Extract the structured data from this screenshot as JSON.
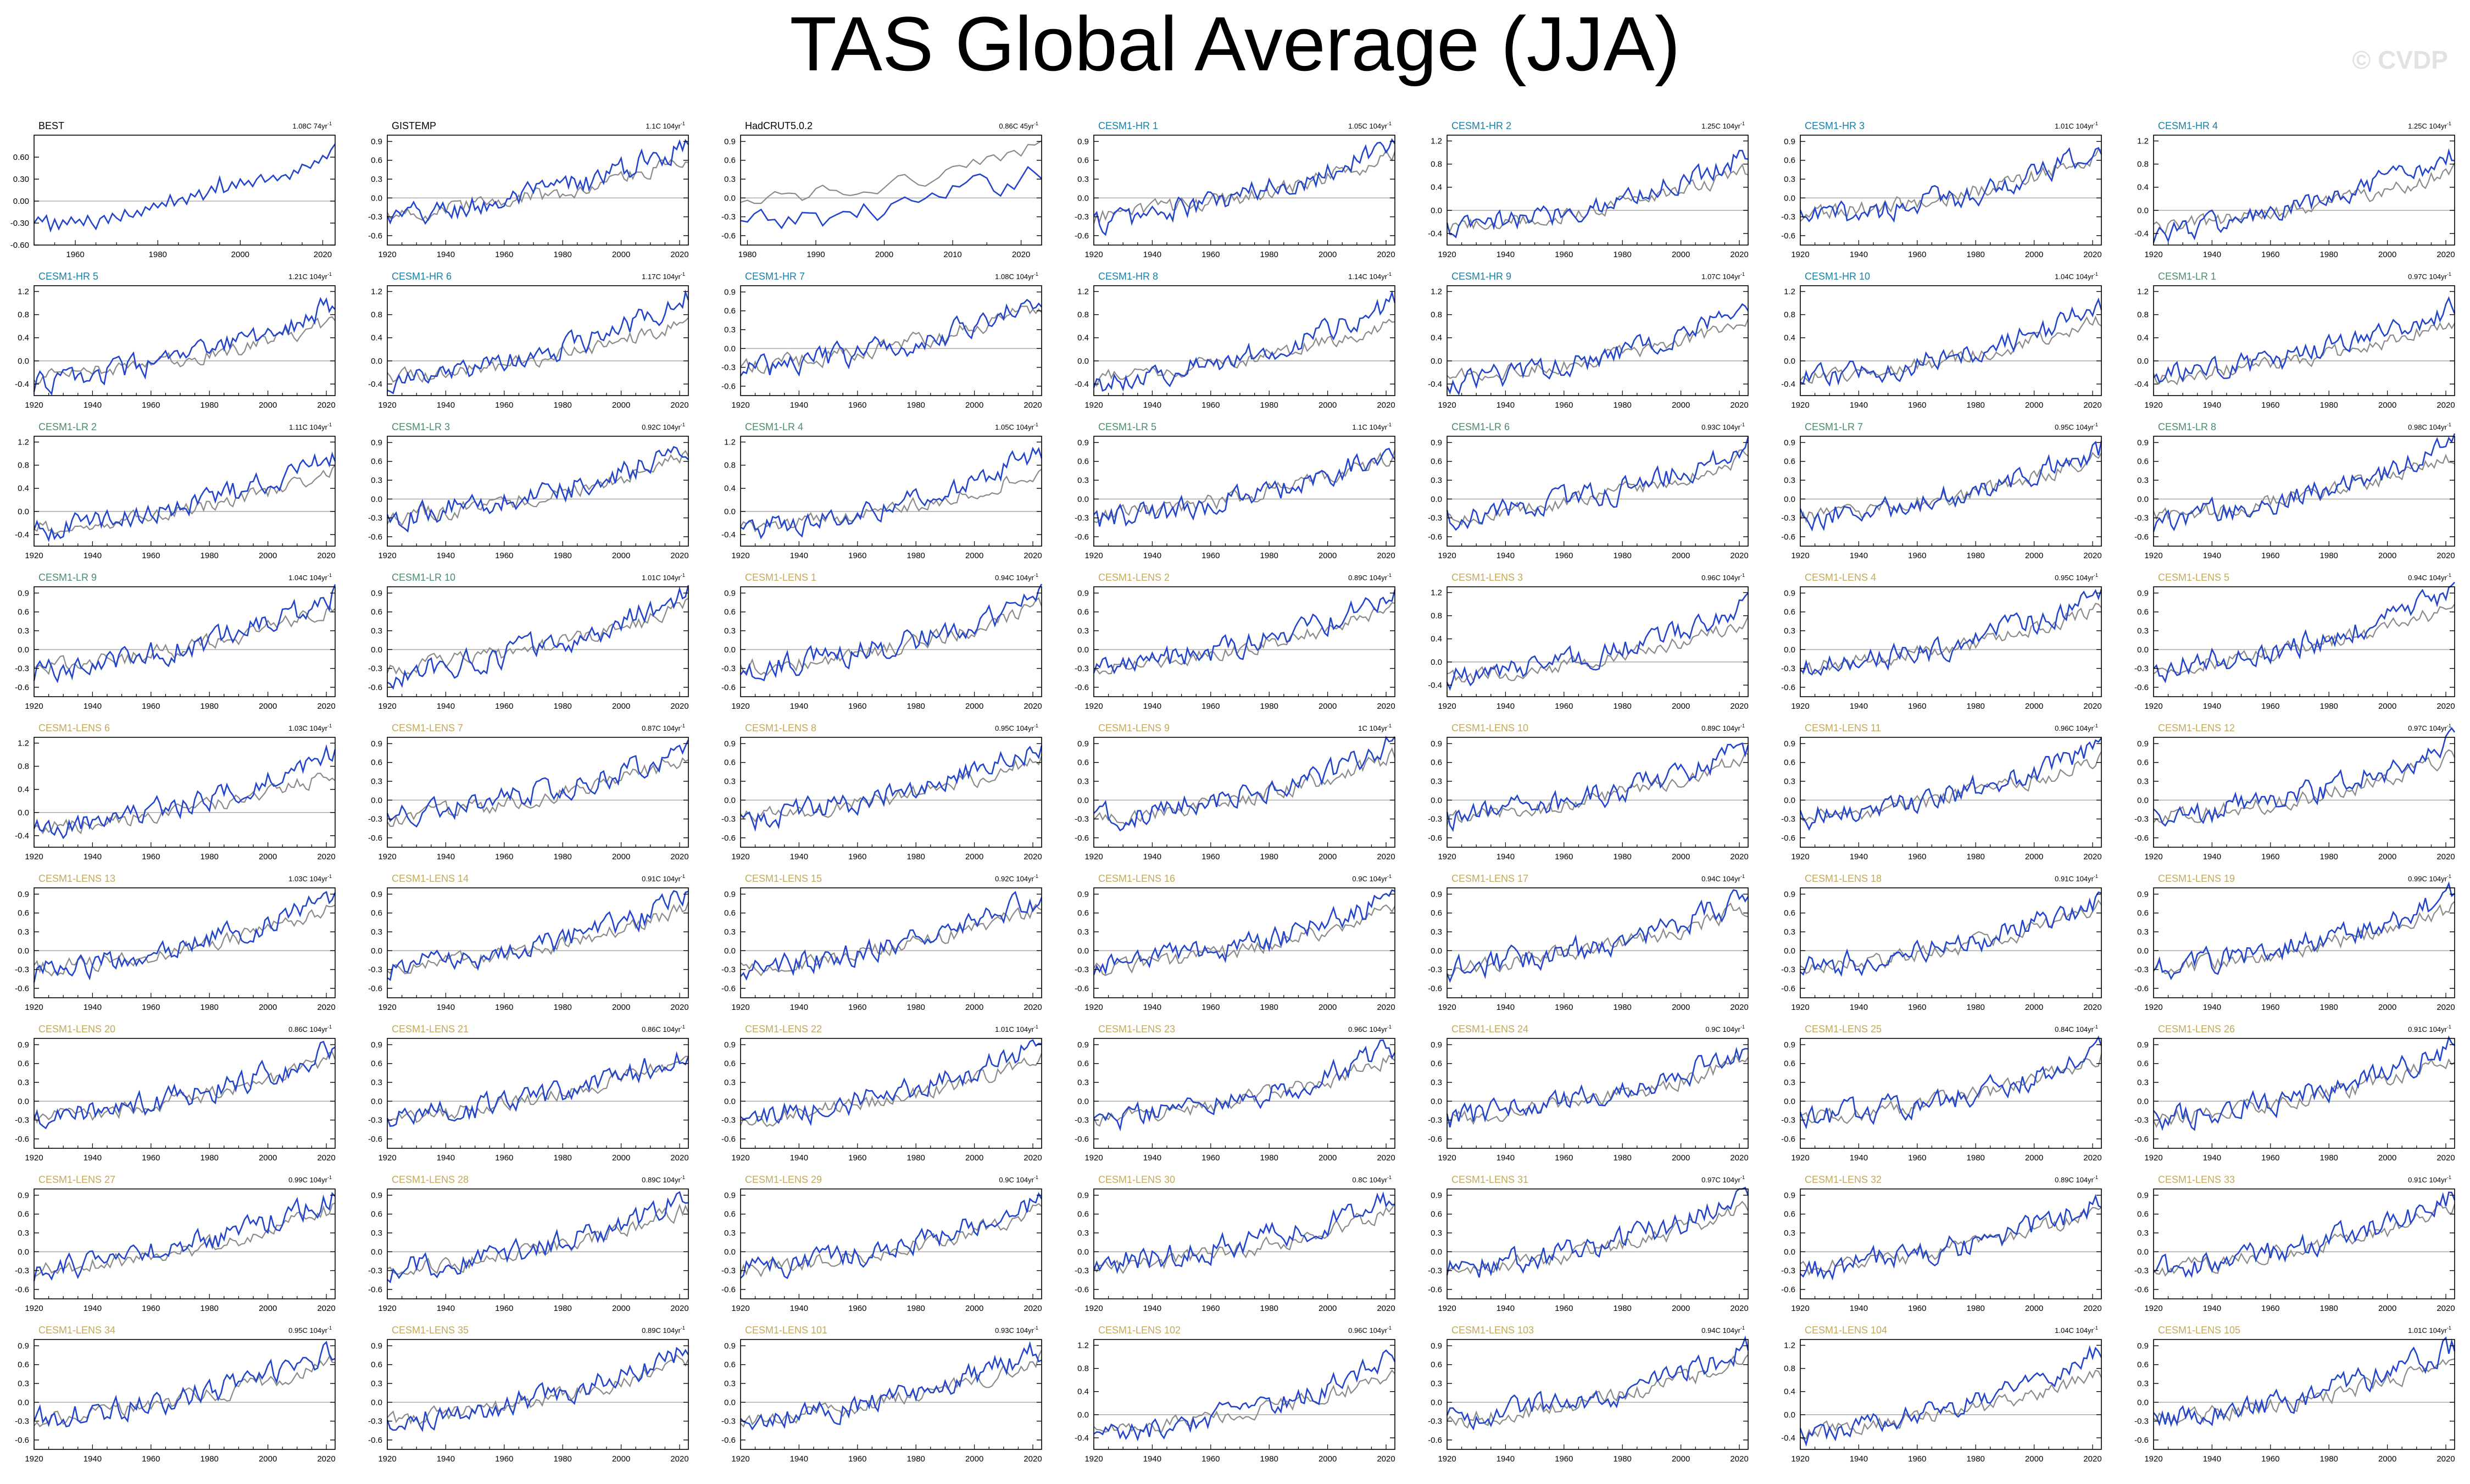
{
  "figure": {
    "title": "TAS Global Average (JJA)",
    "watermark": "© CVDP"
  },
  "colors": {
    "obs_label": "#000000",
    "hr_label": "#1a7fa6",
    "lr_label": "#4e8a6c",
    "lens_label": "#c4a95b",
    "member_line": "#2244cc",
    "reference_line": "#8a8a8a",
    "zero_line": "#b0b0b0",
    "axis": "#000000"
  },
  "chart_data": [
    {
      "type": "line",
      "name": "BEST",
      "group": "obs",
      "trend": "1.08C 74yr",
      "x_range": [
        1950,
        2023
      ],
      "ylim": [
        -0.6,
        0.9
      ],
      "yticks": [
        "0.60",
        "0.30",
        "0.00",
        "-0.30",
        "-0.60"
      ],
      "ytick_values": [
        0.6,
        0.3,
        0,
        -0.3,
        -0.6
      ],
      "xticks": [
        1960,
        1980,
        2000,
        2020
      ],
      "member": {
        "start": -0.28,
        "end": 0.78
      },
      "show_reference": false,
      "series": [
        {
          "name": "BEST",
          "values": [
            -0.3,
            -0.22,
            -0.28,
            -0.2,
            -0.4,
            -0.25,
            -0.38,
            -0.26,
            -0.32,
            -0.22,
            -0.3,
            -0.25,
            -0.33,
            -0.2,
            -0.3,
            -0.38,
            -0.24,
            -0.2,
            -0.3,
            -0.17,
            -0.23,
            -0.27,
            -0.12,
            -0.2,
            -0.22,
            -0.13,
            -0.2,
            -0.08,
            -0.12,
            -0.03,
            -0.09,
            -0.02,
            -0.07,
            0.08,
            -0.06,
            0.02,
            0.05,
            -0.04,
            0.1,
            0.06,
            0.15,
            0.02,
            0.1,
            0.2,
            0.12,
            0.32,
            0.12,
            0.15,
            0.26,
            0.18,
            0.3,
            0.22,
            0.28,
            0.2,
            0.3,
            0.36,
            0.26,
            0.3,
            0.35,
            0.28,
            0.34,
            0.36,
            0.3,
            0.42,
            0.38,
            0.5,
            0.48,
            0.45,
            0.55,
            0.52,
            0.62,
            0.58,
            0.7,
            0.78
          ]
        }
      ]
    },
    {
      "type": "line",
      "name": "GISTEMP",
      "group": "obs",
      "trend": "1.1C 104yr",
      "x_range": [
        1920,
        2023
      ],
      "ylim": [
        -0.75,
        1.0
      ],
      "yticks": [
        "0.9",
        "0.6",
        "0.3",
        "0.0",
        "-0.3",
        "-0.6"
      ],
      "ytick_values": [
        0.9,
        0.6,
        0.3,
        0,
        -0.3,
        -0.6
      ],
      "xticks": [
        1920,
        1940,
        1960,
        1980,
        2000,
        2020
      ],
      "member": {
        "start": -0.35,
        "end": 0.88
      },
      "show_reference": true
    },
    {
      "type": "line",
      "name": "HadCRUT5.0.2",
      "group": "obs",
      "trend": "0.86C 45yr",
      "x_range": [
        1979,
        2023
      ],
      "ylim": [
        -0.75,
        1.0
      ],
      "yticks": [
        "0.9",
        "0.6",
        "0.3",
        "0.0",
        "-0.3",
        "-0.6"
      ],
      "ytick_values": [
        0.9,
        0.6,
        0.3,
        0,
        -0.3,
        -0.6
      ],
      "xticks": [
        1980,
        1990,
        2000,
        2010,
        2020
      ],
      "member": {
        "start": -0.45,
        "end": 0.45
      },
      "show_reference": true,
      "reference": {
        "start": -0.05,
        "end": 0.85
      }
    },
    {
      "type": "line",
      "name": "CESM1-HR 1",
      "group": "hr",
      "trend": "1.05C 104yr",
      "member": {
        "start": -0.4,
        "end": 0.92
      }
    },
    {
      "type": "line",
      "name": "CESM1-HR 2",
      "group": "hr",
      "trend": "1.25C 104yr",
      "ylim": [
        -0.6,
        1.3
      ],
      "yticks": [
        "1.2",
        "0.8",
        "0.4",
        "0.0",
        "-0.4"
      ],
      "ytick_values": [
        1.2,
        0.8,
        0.4,
        0,
        -0.4
      ],
      "member": {
        "start": -0.35,
        "end": 1.0
      }
    },
    {
      "type": "line",
      "name": "CESM1-HR 3",
      "group": "hr",
      "trend": "1.01C 104yr",
      "member": {
        "start": -0.35,
        "end": 0.75
      }
    },
    {
      "type": "line",
      "name": "CESM1-HR 4",
      "group": "hr",
      "trend": "1.25C 104yr",
      "ylim": [
        -0.6,
        1.3
      ],
      "yticks": [
        "1.2",
        "0.8",
        "0.4",
        "0.0",
        "-0.4"
      ],
      "ytick_values": [
        1.2,
        0.8,
        0.4,
        0,
        -0.4
      ],
      "member": {
        "start": -0.4,
        "end": 1.0
      }
    },
    {
      "type": "line",
      "name": "CESM1-HR 5",
      "group": "hr",
      "trend": "1.21C 104yr",
      "ylim": [
        -0.6,
        1.3
      ],
      "yticks": [
        "1.2",
        "0.8",
        "0.4",
        "0.0",
        "-0.4"
      ],
      "ytick_values": [
        1.2,
        0.8,
        0.4,
        0,
        -0.4
      ],
      "member": {
        "start": -0.4,
        "end": 1.0
      }
    },
    {
      "type": "line",
      "name": "CESM1-HR 6",
      "group": "hr",
      "trend": "1.17C 104yr",
      "ylim": [
        -0.6,
        1.3
      ],
      "yticks": [
        "1.2",
        "0.8",
        "0.4",
        "0.0",
        "-0.4"
      ],
      "ytick_values": [
        1.2,
        0.8,
        0.4,
        0,
        -0.4
      ],
      "member": {
        "start": -0.4,
        "end": 1.1
      }
    },
    {
      "type": "line",
      "name": "CESM1-HR 7",
      "group": "hr",
      "trend": "1.08C 104yr",
      "member": {
        "start": -0.35,
        "end": 0.8
      }
    },
    {
      "type": "line",
      "name": "CESM1-HR 8",
      "group": "hr",
      "trend": "1.14C 104yr",
      "ylim": [
        -0.6,
        1.3
      ],
      "yticks": [
        "1.2",
        "0.8",
        "0.4",
        "0.0",
        "-0.4"
      ],
      "ytick_values": [
        1.2,
        0.8,
        0.4,
        0,
        -0.4
      ],
      "member": {
        "start": -0.4,
        "end": 1.05
      }
    },
    {
      "type": "line",
      "name": "CESM1-HR 9",
      "group": "hr",
      "trend": "1.07C 104yr",
      "ylim": [
        -0.6,
        1.3
      ],
      "yticks": [
        "1.2",
        "0.8",
        "0.4",
        "0.0",
        "-0.4"
      ],
      "ytick_values": [
        1.2,
        0.8,
        0.4,
        0,
        -0.4
      ],
      "member": {
        "start": -0.4,
        "end": 1.0
      }
    },
    {
      "type": "line",
      "name": "CESM1-HR 10",
      "group": "hr",
      "trend": "1.04C 104yr",
      "ylim": [
        -0.6,
        1.3
      ],
      "yticks": [
        "1.2",
        "0.8",
        "0.4",
        "0.0",
        "-0.4"
      ],
      "ytick_values": [
        1.2,
        0.8,
        0.4,
        0,
        -0.4
      ],
      "member": {
        "start": -0.35,
        "end": 0.95
      }
    },
    {
      "type": "line",
      "name": "CESM1-LR 1",
      "group": "lr",
      "trend": "0.97C 104yr",
      "ylim": [
        -0.6,
        1.3
      ],
      "yticks": [
        "1.2",
        "0.8",
        "0.4",
        "0.0",
        "-0.4"
      ],
      "ytick_values": [
        1.2,
        0.8,
        0.4,
        0,
        -0.4
      ],
      "member": {
        "start": -0.3,
        "end": 0.95
      }
    },
    {
      "type": "line",
      "name": "CESM1-LR 2",
      "group": "lr",
      "trend": "1.11C 104yr",
      "ylim": [
        -0.6,
        1.3
      ],
      "yticks": [
        "1.2",
        "0.8",
        "0.4",
        "0.0",
        "-0.4"
      ],
      "ytick_values": [
        1.2,
        0.8,
        0.4,
        0,
        -0.4
      ],
      "member": {
        "start": -0.35,
        "end": 1.0
      }
    },
    {
      "type": "line",
      "name": "CESM1-LR 3",
      "group": "lr",
      "trend": "0.92C 104yr",
      "member": {
        "start": -0.3,
        "end": 0.85
      }
    },
    {
      "type": "line",
      "name": "CESM1-LR 4",
      "group": "lr",
      "trend": "1.05C 104yr",
      "ylim": [
        -0.6,
        1.3
      ],
      "yticks": [
        "1.2",
        "0.8",
        "0.4",
        "0.0",
        "-0.4"
      ],
      "ytick_values": [
        1.2,
        0.8,
        0.4,
        0,
        -0.4
      ],
      "member": {
        "start": -0.35,
        "end": 1.05
      }
    },
    {
      "type": "line",
      "name": "CESM1-LR 5",
      "group": "lr",
      "trend": "1.1C 104yr",
      "member": {
        "start": -0.35,
        "end": 0.85
      }
    },
    {
      "type": "line",
      "name": "CESM1-LR 6",
      "group": "lr",
      "trend": "0.93C 104yr",
      "member": {
        "start": -0.3,
        "end": 0.8
      }
    },
    {
      "type": "line",
      "name": "CESM1-LR 7",
      "group": "lr",
      "trend": "0.95C 104yr",
      "member": {
        "start": -0.3,
        "end": 0.8
      }
    },
    {
      "type": "line",
      "name": "CESM1-LR 8",
      "group": "lr",
      "trend": "0.98C 104yr",
      "member": {
        "start": -0.35,
        "end": 0.85
      }
    },
    {
      "type": "line",
      "name": "CESM1-LR 9",
      "group": "lr",
      "trend": "1.04C 104yr",
      "member": {
        "start": -0.35,
        "end": 0.85
      }
    },
    {
      "type": "line",
      "name": "CESM1-LR 10",
      "group": "lr",
      "trend": "1.01C 104yr",
      "member": {
        "start": -0.4,
        "end": 0.9
      }
    },
    {
      "type": "line",
      "name": "CESM1-LENS 1",
      "group": "lens",
      "trend": "0.94C 104yr",
      "member": {
        "start": -0.3,
        "end": 0.85
      }
    },
    {
      "type": "line",
      "name": "CESM1-LENS 2",
      "group": "lens",
      "trend": "0.89C 104yr",
      "member": {
        "start": -0.3,
        "end": 0.85
      }
    },
    {
      "type": "line",
      "name": "CESM1-LENS 3",
      "group": "lens",
      "trend": "0.96C 104yr",
      "ylim": [
        -0.6,
        1.3
      ],
      "yticks": [
        "1.2",
        "0.8",
        "0.4",
        "0.0",
        "-0.4"
      ],
      "ytick_values": [
        1.2,
        0.8,
        0.4,
        0,
        -0.4
      ],
      "member": {
        "start": -0.3,
        "end": 1.0
      }
    },
    {
      "type": "line",
      "name": "CESM1-LENS 4",
      "group": "lens",
      "trend": "0.95C 104yr",
      "member": {
        "start": -0.3,
        "end": 0.85
      }
    },
    {
      "type": "line",
      "name": "CESM1-LENS 5",
      "group": "lens",
      "trend": "0.94C 104yr",
      "member": {
        "start": -0.3,
        "end": 0.9
      }
    },
    {
      "type": "line",
      "name": "CESM1-LENS 6",
      "group": "lens",
      "trend": "1.03C 104yr",
      "ylim": [
        -0.6,
        1.3
      ],
      "yticks": [
        "1.2",
        "0.8",
        "0.4",
        "0.0",
        "-0.4"
      ],
      "ytick_values": [
        1.2,
        0.8,
        0.4,
        0,
        -0.4
      ],
      "member": {
        "start": -0.3,
        "end": 1.05
      }
    },
    {
      "type": "line",
      "name": "CESM1-LENS 7",
      "group": "lens",
      "trend": "0.87C 104yr",
      "member": {
        "start": -0.25,
        "end": 0.85
      }
    },
    {
      "type": "line",
      "name": "CESM1-LENS 8",
      "group": "lens",
      "trend": "0.95C 104yr",
      "member": {
        "start": -0.3,
        "end": 0.85
      }
    },
    {
      "type": "line",
      "name": "CESM1-LENS 9",
      "group": "lens",
      "trend": "1C 104yr",
      "member": {
        "start": -0.3,
        "end": 0.9
      }
    },
    {
      "type": "line",
      "name": "CESM1-LENS 10",
      "group": "lens",
      "trend": "0.89C 104yr",
      "member": {
        "start": -0.3,
        "end": 0.85
      }
    },
    {
      "type": "line",
      "name": "CESM1-LENS 11",
      "group": "lens",
      "trend": "0.96C 104yr",
      "member": {
        "start": -0.3,
        "end": 0.9
      }
    },
    {
      "type": "line",
      "name": "CESM1-LENS 12",
      "group": "lens",
      "trend": "0.97C 104yr",
      "member": {
        "start": -0.3,
        "end": 0.9
      }
    },
    {
      "type": "line",
      "name": "CESM1-LENS 13",
      "group": "lens",
      "trend": "1.03C 104yr",
      "member": {
        "start": -0.35,
        "end": 0.9
      }
    },
    {
      "type": "line",
      "name": "CESM1-LENS 14",
      "group": "lens",
      "trend": "0.91C 104yr",
      "member": {
        "start": -0.3,
        "end": 0.85
      }
    },
    {
      "type": "line",
      "name": "CESM1-LENS 15",
      "group": "lens",
      "trend": "0.92C 104yr",
      "member": {
        "start": -0.3,
        "end": 0.85
      }
    },
    {
      "type": "line",
      "name": "CESM1-LENS 16",
      "group": "lens",
      "trend": "0.9C 104yr",
      "member": {
        "start": -0.3,
        "end": 0.85
      }
    },
    {
      "type": "line",
      "name": "CESM1-LENS 17",
      "group": "lens",
      "trend": "0.94C 104yr",
      "member": {
        "start": -0.3,
        "end": 0.85
      }
    },
    {
      "type": "line",
      "name": "CESM1-LENS 18",
      "group": "lens",
      "trend": "0.91C 104yr",
      "member": {
        "start": -0.3,
        "end": 0.85
      }
    },
    {
      "type": "line",
      "name": "CESM1-LENS 19",
      "group": "lens",
      "trend": "0.99C 104yr",
      "member": {
        "start": -0.3,
        "end": 0.9
      }
    },
    {
      "type": "line",
      "name": "CESM1-LENS 20",
      "group": "lens",
      "trend": "0.86C 104yr",
      "member": {
        "start": -0.3,
        "end": 0.85
      }
    },
    {
      "type": "line",
      "name": "CESM1-LENS 21",
      "group": "lens",
      "trend": "0.86C 104yr",
      "member": {
        "start": -0.3,
        "end": 0.8
      }
    },
    {
      "type": "line",
      "name": "CESM1-LENS 22",
      "group": "lens",
      "trend": "1.01C 104yr",
      "member": {
        "start": -0.3,
        "end": 0.9
      }
    },
    {
      "type": "line",
      "name": "CESM1-LENS 23",
      "group": "lens",
      "trend": "0.96C 104yr",
      "member": {
        "start": -0.35,
        "end": 0.85
      }
    },
    {
      "type": "line",
      "name": "CESM1-LENS 24",
      "group": "lens",
      "trend": "0.9C 104yr",
      "member": {
        "start": -0.3,
        "end": 0.85
      }
    },
    {
      "type": "line",
      "name": "CESM1-LENS 25",
      "group": "lens",
      "trend": "0.84C 104yr",
      "member": {
        "start": -0.3,
        "end": 0.8
      }
    },
    {
      "type": "line",
      "name": "CESM1-LENS 26",
      "group": "lens",
      "trend": "0.91C 104yr",
      "member": {
        "start": -0.3,
        "end": 0.9
      }
    },
    {
      "type": "line",
      "name": "CESM1-LENS 27",
      "group": "lens",
      "trend": "0.99C 104yr",
      "member": {
        "start": -0.3,
        "end": 0.9
      }
    },
    {
      "type": "line",
      "name": "CESM1-LENS 28",
      "group": "lens",
      "trend": "0.89C 104yr",
      "member": {
        "start": -0.3,
        "end": 0.85
      }
    },
    {
      "type": "line",
      "name": "CESM1-LENS 29",
      "group": "lens",
      "trend": "0.9C 104yr",
      "member": {
        "start": -0.3,
        "end": 0.85
      }
    },
    {
      "type": "line",
      "name": "CESM1-LENS 30",
      "group": "lens",
      "trend": "0.8C 104yr",
      "member": {
        "start": -0.2,
        "end": 0.85
      }
    },
    {
      "type": "line",
      "name": "CESM1-LENS 31",
      "group": "lens",
      "trend": "0.97C 104yr",
      "member": {
        "start": -0.3,
        "end": 0.9
      }
    },
    {
      "type": "line",
      "name": "CESM1-LENS 32",
      "group": "lens",
      "trend": "0.89C 104yr",
      "member": {
        "start": -0.3,
        "end": 0.8
      }
    },
    {
      "type": "line",
      "name": "CESM1-LENS 33",
      "group": "lens",
      "trend": "0.91C 104yr",
      "member": {
        "start": -0.3,
        "end": 0.85
      }
    },
    {
      "type": "line",
      "name": "CESM1-LENS 34",
      "group": "lens",
      "trend": "0.95C 104yr",
      "member": {
        "start": -0.3,
        "end": 0.85
      }
    },
    {
      "type": "line",
      "name": "CESM1-LENS 35",
      "group": "lens",
      "trend": "0.89C 104yr",
      "member": {
        "start": -0.3,
        "end": 0.85
      }
    },
    {
      "type": "line",
      "name": "CESM1-LENS 101",
      "group": "lens",
      "trend": "0.93C 104yr",
      "member": {
        "start": -0.3,
        "end": 0.85
      }
    },
    {
      "type": "line",
      "name": "CESM1-LENS 102",
      "group": "lens",
      "trend": "0.96C 104yr",
      "ylim": [
        -0.6,
        1.3
      ],
      "yticks": [
        "1.2",
        "0.8",
        "0.4",
        "0.0",
        "-0.4"
      ],
      "ytick_values": [
        1.2,
        0.8,
        0.4,
        0,
        -0.4
      ],
      "member": {
        "start": -0.4,
        "end": 1.0
      }
    },
    {
      "type": "line",
      "name": "CESM1-LENS 103",
      "group": "lens",
      "trend": "0.94C 104yr",
      "member": {
        "start": -0.3,
        "end": 0.85
      }
    },
    {
      "type": "line",
      "name": "CESM1-LENS 104",
      "group": "lens",
      "trend": "1.04C 104yr",
      "ylim": [
        -0.6,
        1.3
      ],
      "yticks": [
        "1.2",
        "0.8",
        "0.4",
        "0.0",
        "-0.4"
      ],
      "ytick_values": [
        1.2,
        0.8,
        0.4,
        0,
        -0.4
      ],
      "member": {
        "start": -0.35,
        "end": 1.1
      }
    },
    {
      "type": "line",
      "name": "CESM1-LENS 105",
      "group": "lens",
      "trend": "1.01C 104yr",
      "member": {
        "start": -0.3,
        "end": 0.9
      }
    }
  ],
  "defaults": {
    "x_range": [
      1920,
      2023
    ],
    "xticks": [
      1920,
      1940,
      1960,
      1980,
      2000,
      2020
    ],
    "ylim": [
      -0.75,
      1.0
    ],
    "yticks": [
      "0.9",
      "0.6",
      "0.3",
      "0.0",
      "-0.3",
      "-0.6"
    ],
    "ytick_values": [
      0.9,
      0.6,
      0.3,
      0,
      -0.3,
      -0.6
    ],
    "reference": {
      "start": -0.3,
      "end": 0.7
    },
    "trend_unit_superscript": "-1"
  }
}
